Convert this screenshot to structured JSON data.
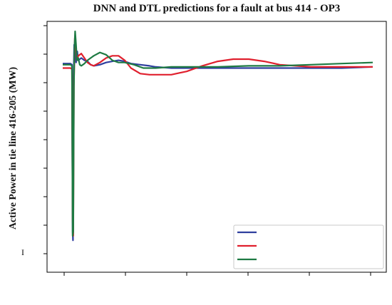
{
  "chart_data": {
    "type": "line",
    "title": "DNN and DTL predictions for a fault at bus 414 - OP3",
    "ylabel": "Active Power in tie line   416-205 (MW)",
    "xlabel": "",
    "y_tick_label": "I",
    "x_ticks_count": 6,
    "y_ticks_count": 9,
    "xlim": [
      0,
      10
    ],
    "ylim": [
      0,
      10
    ],
    "grid": false,
    "legend_position": "bottom-right",
    "series": [
      {
        "color": "#2f3f9e",
        "x": [
          0,
          0.25,
          0.3,
          0.32,
          0.33,
          0.35,
          0.37,
          0.4,
          0.43,
          0.47,
          0.5,
          0.6,
          0.7,
          0.8,
          0.9,
          1.0,
          1.2,
          1.4,
          1.6,
          1.8,
          2.0,
          2.2,
          2.5,
          2.8,
          3.0,
          3.5,
          4.0,
          5.0,
          6.0,
          7.0,
          8.0,
          9.0,
          10.0
        ],
        "y": [
          8.55,
          8.55,
          8.5,
          1.0,
          0.6,
          7.8,
          9.4,
          9.3,
          8.6,
          9.1,
          8.7,
          8.8,
          8.7,
          8.65,
          8.5,
          8.45,
          8.5,
          8.6,
          8.65,
          8.7,
          8.65,
          8.55,
          8.5,
          8.45,
          8.4,
          8.35,
          8.35,
          8.35,
          8.35,
          8.35,
          8.35,
          8.35,
          8.4
        ]
      },
      {
        "color": "#e0202e",
        "x": [
          0,
          0.25,
          0.3,
          0.32,
          0.34,
          0.36,
          0.39,
          0.42,
          0.46,
          0.5,
          0.6,
          0.7,
          0.8,
          0.9,
          1.0,
          1.2,
          1.4,
          1.6,
          1.8,
          2.0,
          2.2,
          2.5,
          2.8,
          3.0,
          3.5,
          4.0,
          4.5,
          5.0,
          5.5,
          6.0,
          6.5,
          7.0,
          8.0,
          9.0,
          10.0
        ],
        "y": [
          8.35,
          8.35,
          8.3,
          1.5,
          0.8,
          7.6,
          9.7,
          9.3,
          8.7,
          8.9,
          9.0,
          8.8,
          8.6,
          8.5,
          8.45,
          8.6,
          8.8,
          8.9,
          8.9,
          8.7,
          8.35,
          8.1,
          8.05,
          8.05,
          8.05,
          8.2,
          8.45,
          8.65,
          8.75,
          8.75,
          8.65,
          8.5,
          8.4,
          8.4,
          8.4
        ]
      },
      {
        "color": "#1e7a43",
        "x": [
          0,
          0.25,
          0.3,
          0.32,
          0.34,
          0.36,
          0.38,
          0.4,
          0.43,
          0.46,
          0.5,
          0.55,
          0.6,
          0.7,
          0.8,
          0.9,
          1.0,
          1.2,
          1.4,
          1.6,
          1.8,
          2.0,
          2.3,
          2.6,
          3.0,
          3.5,
          4.0,
          5.0,
          6.0,
          7.0,
          8.0,
          9.0,
          10.0
        ],
        "y": [
          8.5,
          8.5,
          8.45,
          0.8,
          1.0,
          7.5,
          9.3,
          10.0,
          9.4,
          8.7,
          8.8,
          8.5,
          8.45,
          8.55,
          8.7,
          8.8,
          8.9,
          9.05,
          8.95,
          8.7,
          8.6,
          8.6,
          8.5,
          8.35,
          8.35,
          8.4,
          8.4,
          8.4,
          8.45,
          8.45,
          8.5,
          8.55,
          8.6
        ]
      }
    ]
  }
}
